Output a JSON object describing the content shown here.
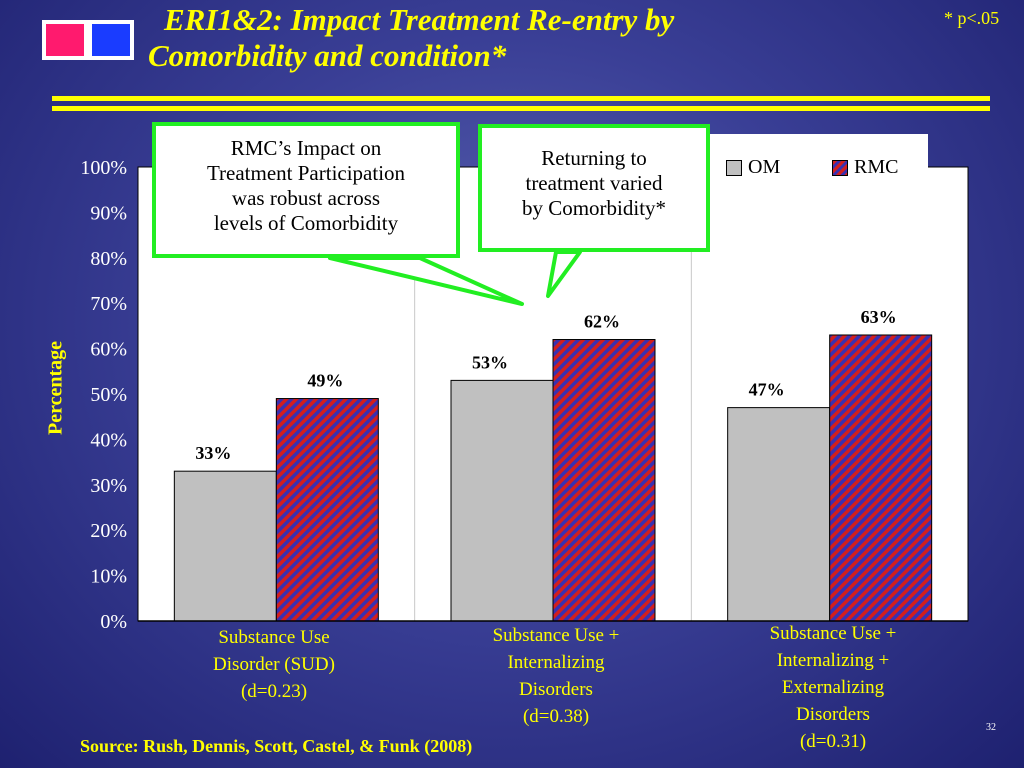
{
  "slide": {
    "title_line1": "ERI1&2:  Impact Treatment Re-entry by",
    "title_line2": "Comorbidity and condition*",
    "significance_note": "* p<.05",
    "source": "Source: Rush, Dennis, Scott, Castel, & Funk (2008)",
    "page_number": "32",
    "colors": {
      "accent": "#ffff00",
      "callout_border": "#22ee22",
      "om": "#c0c0c0",
      "rmc_red": "#d21e1e",
      "rmc_blue": "#3a30b0"
    }
  },
  "callouts": [
    {
      "lines": [
        "RMC’s Impact on",
        "Treatment Participation",
        "was robust across",
        "levels of Comorbidity"
      ]
    },
    {
      "lines": [
        "Returning to",
        "treatment varied",
        "by Comorbidity*"
      ]
    }
  ],
  "chart_data": {
    "type": "bar",
    "categories": [
      [
        "Substance Use",
        "Disorder (SUD)",
        "(d=0.23)"
      ],
      [
        "Substance Use +",
        "Internalizing",
        "Disorders",
        "(d=0.38)"
      ],
      [
        "Substance Use +",
        "Internalizing +",
        "Externalizing",
        "Disorders",
        "(d=0.31)"
      ]
    ],
    "series": [
      {
        "name": "OM",
        "values": [
          33,
          53,
          47
        ],
        "labels": [
          "33%",
          "53%",
          "47%"
        ]
      },
      {
        "name": "RMC",
        "values": [
          49,
          62,
          63
        ],
        "labels": [
          "49%",
          "62%",
          "63%"
        ]
      }
    ],
    "ylabel": "Percentage",
    "ylim": [
      0,
      100
    ],
    "yticks": [
      "0%",
      "10%",
      "20%",
      "30%",
      "40%",
      "50%",
      "60%",
      "70%",
      "80%",
      "90%",
      "100%"
    ],
    "grid": "vertical category dividers",
    "legend_position": "top-right"
  }
}
